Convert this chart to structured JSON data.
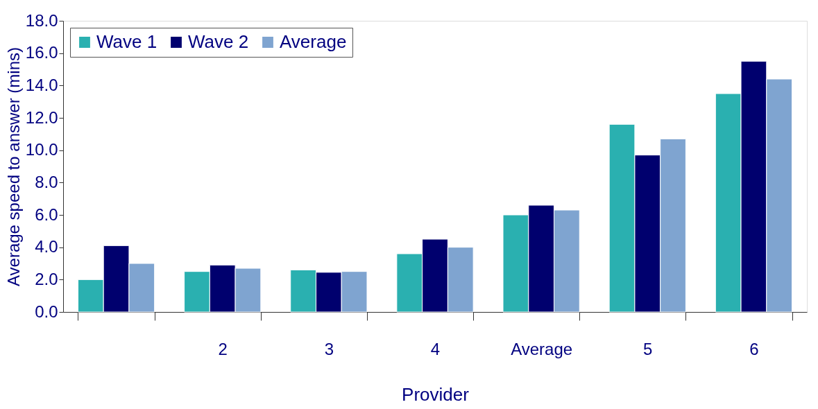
{
  "chart_data": {
    "type": "bar",
    "xlabel": "Provider",
    "ylabel": "Average speed to answer (mins)",
    "categories": [
      null,
      "2",
      "3",
      "4",
      "Average",
      "5",
      "6"
    ],
    "series": [
      {
        "name": "Wave 1",
        "color": "#2ab0b0",
        "values": [
          2.0,
          2.5,
          2.6,
          3.6,
          6.0,
          11.6,
          13.5
        ]
      },
      {
        "name": "Wave 2",
        "color": "#00006e",
        "values": [
          4.1,
          2.9,
          2.45,
          4.5,
          6.6,
          9.7,
          15.5
        ]
      },
      {
        "name": "Average",
        "color": "#7fa4d0",
        "values": [
          3.0,
          2.7,
          2.5,
          4.0,
          6.3,
          10.7,
          14.4
        ]
      }
    ],
    "ylim": [
      0,
      18
    ],
    "yticks": [
      {
        "value": 0,
        "label": "0.0"
      },
      {
        "value": 2,
        "label": "2.0"
      },
      {
        "value": 4,
        "label": "4.0"
      },
      {
        "value": 6,
        "label": "6.0"
      },
      {
        "value": 8,
        "label": "8.0"
      },
      {
        "value": 10,
        "label": "10.0"
      },
      {
        "value": 12,
        "label": "12.0"
      },
      {
        "value": 14,
        "label": "14.0"
      },
      {
        "value": 16,
        "label": "16.0"
      },
      {
        "value": 18,
        "label": "18.0"
      }
    ],
    "grid": false,
    "legend": "top left"
  }
}
